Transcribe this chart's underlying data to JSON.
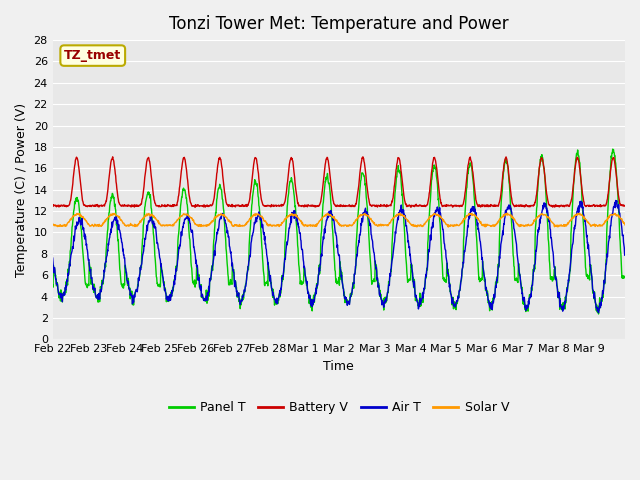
{
  "title": "Tonzi Tower Met: Temperature and Power",
  "xlabel": "Time",
  "ylabel": "Temperature (C) / Power (V)",
  "annotation": "TZ_tmet",
  "ylim": [
    0,
    28
  ],
  "yticks": [
    0,
    2,
    4,
    6,
    8,
    10,
    12,
    14,
    16,
    18,
    20,
    22,
    24,
    26,
    28
  ],
  "xtick_labels": [
    "Feb 22",
    "Feb 23",
    "Feb 24",
    "Feb 25",
    "Feb 26",
    "Feb 27",
    "Feb 28",
    "Mar 1",
    "Mar 2",
    "Mar 3",
    "Mar 4",
    "Mar 5",
    "Mar 6",
    "Mar 7",
    "Mar 8",
    "Mar 9"
  ],
  "colors": {
    "Panel T": "#00cc00",
    "Battery V": "#cc0000",
    "Air T": "#0000cc",
    "Solar V": "#ff9900"
  },
  "fig_bg": "#f0f0f0",
  "ax_bg": "#e8e8e8",
  "legend_entries": [
    "Panel T",
    "Battery V",
    "Air T",
    "Solar V"
  ]
}
